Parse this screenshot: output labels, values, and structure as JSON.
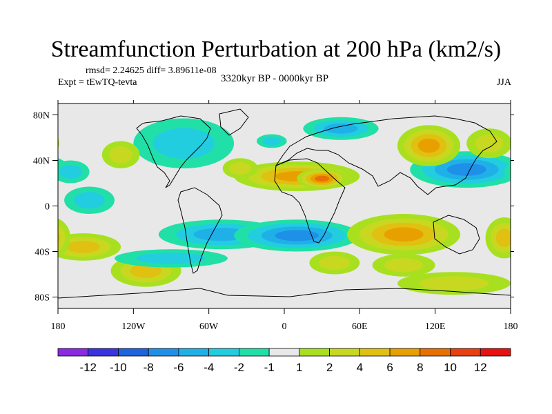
{
  "chart_data": {
    "type": "heatmap",
    "title": "Streamfunction Perturbation at 200 hPa (km2/s)",
    "stats_text": "rmsd= 2.24625  diff= 3.89611e-08",
    "experiment": "Expt = tEwTQ-tevta",
    "period": "3320kyr BP - 0000kyr BP",
    "season": "JJA",
    "xlim": [
      -180,
      180
    ],
    "ylim": [
      -90,
      90
    ],
    "x_ticks": [
      {
        "value": -180,
        "label": "180"
      },
      {
        "value": -120,
        "label": "120W"
      },
      {
        "value": -60,
        "label": "60W"
      },
      {
        "value": 0,
        "label": "0"
      },
      {
        "value": 60,
        "label": "60E"
      },
      {
        "value": 120,
        "label": "120E"
      },
      {
        "value": 180,
        "label": "180"
      }
    ],
    "y_ticks": [
      {
        "value": 80,
        "label": "80N"
      },
      {
        "value": 40,
        "label": "40N"
      },
      {
        "value": 0,
        "label": "0"
      },
      {
        "value": -40,
        "label": "40S"
      },
      {
        "value": -80,
        "label": "80S"
      }
    ],
    "colorbar": {
      "colors": [
        "#8a2be2",
        "#3a34e0",
        "#1e63e0",
        "#1e90e8",
        "#20b0e8",
        "#22cde0",
        "#20e0a8",
        "#e8e8e8",
        "#a8e020",
        "#c8d820",
        "#e0c010",
        "#e8a000",
        "#e87000",
        "#e84010",
        "#e81010"
      ],
      "labels": [
        "-12",
        "-10",
        "-8",
        "-6",
        "-4",
        "-2",
        "-1",
        "1",
        "2",
        "4",
        "6",
        "8",
        "10",
        "12"
      ]
    },
    "anomalies": [
      {
        "lon": 10,
        "lat": 26,
        "rlon": 50,
        "rlat": 13,
        "value": 7
      },
      {
        "lon": 30,
        "lat": 24,
        "rlon": 20,
        "rlat": 9,
        "value": 8
      },
      {
        "lon": -35,
        "lat": 33,
        "rlon": 14,
        "rlat": 9,
        "value": 2
      },
      {
        "lon": 145,
        "lat": 32,
        "rlon": 45,
        "rlat": 16,
        "value": -6
      },
      {
        "lon": 115,
        "lat": 53,
        "rlon": 25,
        "rlat": 18,
        "value": 6
      },
      {
        "lon": 163,
        "lat": 55,
        "rlon": 18,
        "rlat": 13,
        "value": 2
      },
      {
        "lon": 45,
        "lat": 68,
        "rlon": 30,
        "rlat": 10,
        "value": -4
      },
      {
        "lon": -10,
        "lat": 57,
        "rlon": 12,
        "rlat": 6,
        "value": -2
      },
      {
        "lon": -80,
        "lat": 55,
        "rlon": 40,
        "rlat": 22,
        "value": -2
      },
      {
        "lon": -130,
        "lat": 45,
        "rlon": 15,
        "rlat": 12,
        "value": 2
      },
      {
        "lon": -170,
        "lat": 30,
        "rlon": 15,
        "rlat": 10,
        "value": -2
      },
      {
        "lon": -155,
        "lat": 5,
        "rlon": 20,
        "rlat": 12,
        "value": -2
      },
      {
        "lon": -50,
        "lat": -25,
        "rlon": 50,
        "rlat": 13,
        "value": -5
      },
      {
        "lon": 10,
        "lat": -26,
        "rlon": 50,
        "rlat": 14,
        "value": -6
      },
      {
        "lon": 95,
        "lat": -25,
        "rlon": 45,
        "rlat": 18,
        "value": 6
      },
      {
        "lon": -160,
        "lat": -36,
        "rlon": 30,
        "rlat": 12,
        "value": 4
      },
      {
        "lon": -110,
        "lat": -57,
        "rlon": 28,
        "rlat": 14,
        "value": 4
      },
      {
        "lon": -90,
        "lat": -46,
        "rlon": 45,
        "rlat": 8,
        "value": -2
      },
      {
        "lon": 40,
        "lat": -50,
        "rlon": 20,
        "rlat": 10,
        "value": 2
      },
      {
        "lon": 95,
        "lat": -52,
        "rlon": 25,
        "rlat": 10,
        "value": 2
      },
      {
        "lon": 135,
        "lat": -68,
        "rlon": 45,
        "rlat": 10,
        "value": 2
      },
      {
        "lon": 175,
        "lat": -28,
        "rlon": 15,
        "rlat": 18,
        "value": 4
      }
    ]
  }
}
